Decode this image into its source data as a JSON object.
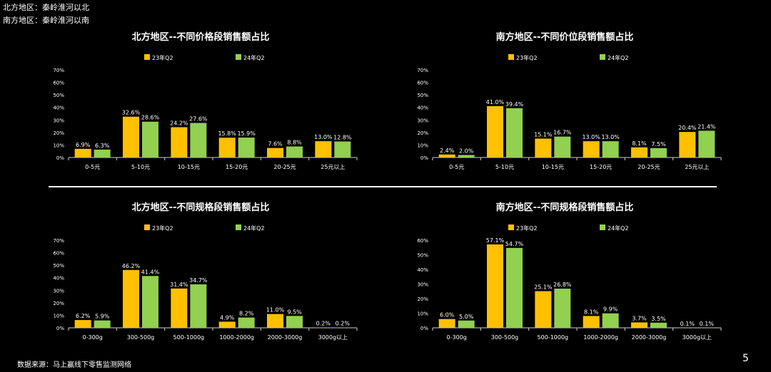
{
  "notes": {
    "north": "北方地区：秦岭淮河以北",
    "south": "南方地区：秦岭淮河以南"
  },
  "source": "数据来源：马上赢线下零售监测网络",
  "page_number": "5",
  "colors": {
    "series_23": "#FFC000",
    "series_24": "#92D050",
    "background": "#000000",
    "text": "#FFFFFF"
  },
  "chart_data": [
    {
      "type": "bar",
      "title": "北方地区--不同价格段销售额占比",
      "categories": [
        "0-5元",
        "5-10元",
        "10-15元",
        "15-20元",
        "20-25元",
        "25元以上"
      ],
      "series": [
        {
          "name": "23年Q2",
          "values": [
            6.9,
            32.6,
            24.2,
            15.8,
            7.6,
            13.0
          ],
          "labels": [
            "6.9%",
            "32.6%",
            "24.2%",
            "15.8%",
            "7.6%",
            "13.0%"
          ]
        },
        {
          "name": "24年Q2",
          "values": [
            6.3,
            28.6,
            27.6,
            15.9,
            8.8,
            12.8
          ],
          "labels": [
            "6.3%",
            "28.6%",
            "27.6%",
            "15.9%",
            "8.8%",
            "12.8%"
          ]
        }
      ],
      "ylim": [
        0,
        70
      ],
      "yticks": [
        "0%",
        "10%",
        "20%",
        "30%",
        "40%",
        "50%",
        "60%",
        "70%"
      ],
      "legend": "top"
    },
    {
      "type": "bar",
      "title": "南方地区--不同价位段销售额占比",
      "categories": [
        "0-5元",
        "5-10元",
        "10-15元",
        "15-20元",
        "20-25元",
        "25元以上"
      ],
      "series": [
        {
          "name": "23年Q2",
          "values": [
            2.4,
            41.0,
            15.1,
            13.0,
            8.1,
            20.4
          ],
          "labels": [
            "2.4%",
            "41.0%",
            "15.1%",
            "13.0%",
            "8.1%",
            "20.4%"
          ]
        },
        {
          "name": "24年Q2",
          "values": [
            2.0,
            39.4,
            16.7,
            13.0,
            7.5,
            21.4
          ],
          "labels": [
            "2.0%",
            "39.4%",
            "16.7%",
            "13.0%",
            "7.5%",
            "21.4%"
          ]
        }
      ],
      "ylim": [
        0,
        70
      ],
      "yticks": [
        "0%",
        "10%",
        "20%",
        "30%",
        "40%",
        "50%",
        "60%",
        "70%"
      ],
      "legend": "top"
    },
    {
      "type": "bar",
      "title": "北方地区--不同规格段销售额占比",
      "categories": [
        "0-300g",
        "300-500g",
        "500-1000g",
        "1000-2000g",
        "2000-3000g",
        "3000g以上"
      ],
      "series": [
        {
          "name": "23年Q2",
          "values": [
            6.2,
            46.2,
            31.4,
            4.9,
            11.0,
            0.2
          ],
          "labels": [
            "6.2%",
            "46.2%",
            "31.4%",
            "4.9%",
            "11.0%",
            "0.2%"
          ]
        },
        {
          "name": "24年Q2",
          "values": [
            5.9,
            41.4,
            34.7,
            8.2,
            9.5,
            0.2
          ],
          "labels": [
            "5.9%",
            "41.4%",
            "34.7%",
            "8.2%",
            "9.5%",
            "0.2%"
          ]
        }
      ],
      "ylim": [
        0,
        70
      ],
      "yticks": [
        "0%",
        "10%",
        "20%",
        "30%",
        "40%",
        "50%",
        "60%",
        "70%"
      ],
      "legend": "top"
    },
    {
      "type": "bar",
      "title": "南方地区--不同规格段销售额占比",
      "categories": [
        "0-300g",
        "300-500g",
        "500-1000g",
        "1000-2000g",
        "2000-3000g",
        "3000g以上"
      ],
      "series": [
        {
          "name": "23年Q2",
          "values": [
            6.0,
            57.1,
            25.1,
            8.1,
            3.7,
            0.1
          ],
          "labels": [
            "6.0%",
            "57.1%",
            "25.1%",
            "8.1%",
            "3.7%",
            "0.1%"
          ]
        },
        {
          "name": "24年Q2",
          "values": [
            5.0,
            54.7,
            26.8,
            9.9,
            3.5,
            0.1
          ],
          "labels": [
            "5.0%",
            "54.7%",
            "26.8%",
            "9.9%",
            "3.5%",
            "0.1%"
          ]
        }
      ],
      "ylim": [
        0,
        60
      ],
      "yticks": [
        "0%",
        "10%",
        "20%",
        "30%",
        "40%",
        "50%",
        "60%"
      ],
      "legend": "top"
    }
  ]
}
